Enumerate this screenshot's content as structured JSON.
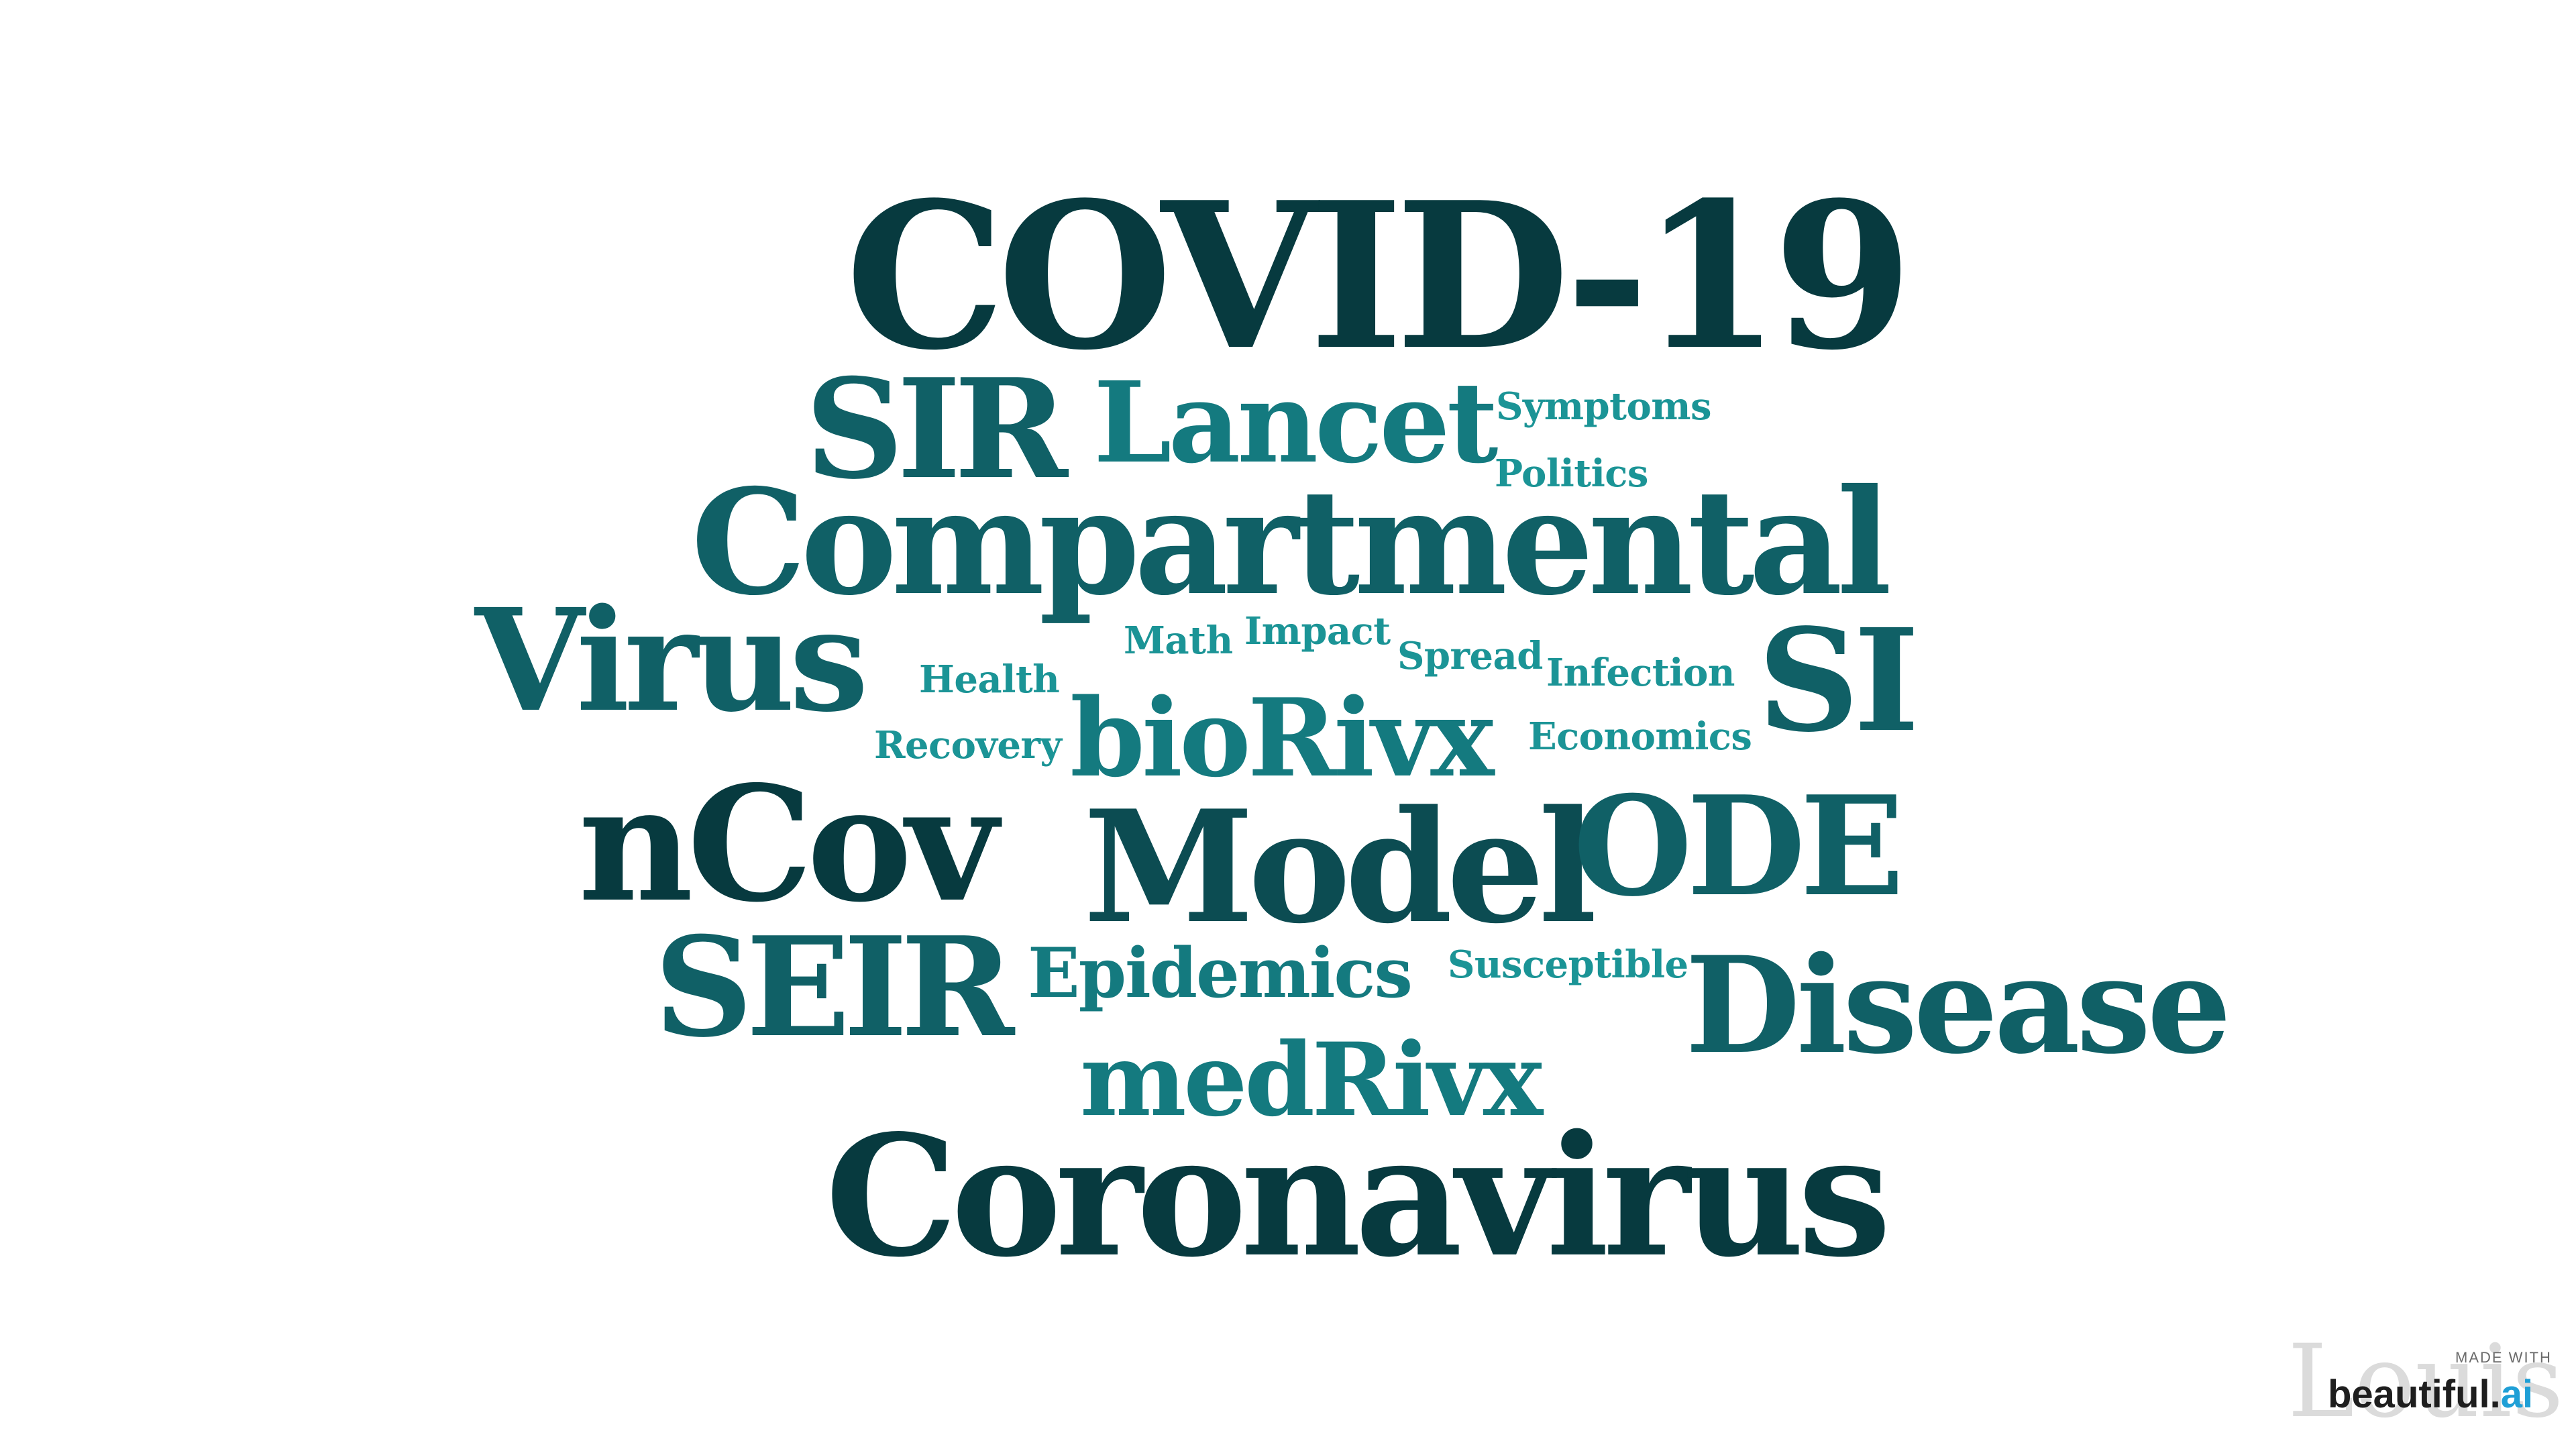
{
  "colors": {
    "darkest": "#073a3f",
    "dark": "#0c4c52",
    "mid": "#106066",
    "teal": "#147a7f",
    "light": "#1b9496"
  },
  "word_cloud": {
    "words": [
      {
        "id": "covid-19",
        "text": "COVID-19"
      },
      {
        "id": "sir",
        "text": "SIR"
      },
      {
        "id": "lancet",
        "text": "Lancet"
      },
      {
        "id": "symptoms",
        "text": "Symptoms"
      },
      {
        "id": "politics",
        "text": "Politics"
      },
      {
        "id": "compartmental",
        "text": "Compartmental"
      },
      {
        "id": "virus",
        "text": "Virus"
      },
      {
        "id": "math",
        "text": "Math"
      },
      {
        "id": "impact",
        "text": "Impact"
      },
      {
        "id": "spread",
        "text": "Spread"
      },
      {
        "id": "health",
        "text": "Health"
      },
      {
        "id": "infection",
        "text": "Infection"
      },
      {
        "id": "si",
        "text": "SI"
      },
      {
        "id": "biorivx",
        "text": "bioRivx"
      },
      {
        "id": "recovery",
        "text": "Recovery"
      },
      {
        "id": "economics",
        "text": "Economics"
      },
      {
        "id": "ncov",
        "text": "nCov"
      },
      {
        "id": "model",
        "text": "Model"
      },
      {
        "id": "ode",
        "text": "ODE"
      },
      {
        "id": "seir",
        "text": "SEIR"
      },
      {
        "id": "epidemics",
        "text": "Epidemics"
      },
      {
        "id": "susceptible",
        "text": "Susceptible"
      },
      {
        "id": "disease",
        "text": "Disease"
      },
      {
        "id": "medrivx",
        "text": "medRivx"
      },
      {
        "id": "coronavirus",
        "text": "Coronavirus"
      }
    ]
  },
  "badge": {
    "watermark": "Louis",
    "made_with": "MADE WITH",
    "brand_main": "beautiful.",
    "brand_accent": "ai"
  }
}
